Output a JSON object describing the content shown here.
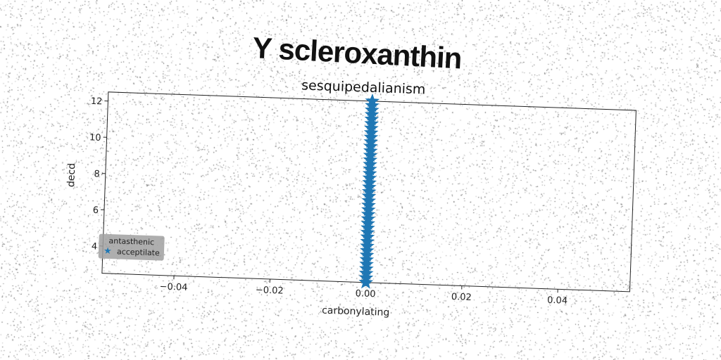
{
  "page": {
    "suptitle": "Y scleroxanthin"
  },
  "colors": {
    "series": "#1f77b4",
    "axis": "#222222",
    "legend_bg": "#a0a0a0"
  },
  "chart_data": {
    "type": "scatter",
    "title": "sesquipedalianism",
    "xlabel": "carbonylating",
    "ylabel": "decd",
    "xlim": [
      -0.055,
      0.055
    ],
    "ylim": [
      2.5,
      12.5
    ],
    "xticks": [
      -0.04,
      -0.02,
      0.0,
      0.02,
      0.04
    ],
    "xtick_labels": [
      "−0.04",
      "−0.02",
      "0.00",
      "0.02",
      "0.04"
    ],
    "yticks": [
      4,
      6,
      8,
      10,
      12
    ],
    "ytick_labels": [
      "4",
      "6",
      "8",
      "10",
      "12"
    ],
    "grid": false,
    "legend": {
      "placement": "lower-left",
      "title": "antasthenic",
      "entries": [
        {
          "label": "acceptilate",
          "marker": "star"
        }
      ]
    },
    "series": [
      {
        "name": "acceptilate",
        "marker": "star",
        "x": [
          0,
          0,
          0,
          0,
          0,
          0,
          0,
          0,
          0,
          0,
          0,
          0,
          0,
          0,
          0,
          0,
          0,
          0,
          0,
          0,
          0,
          0,
          0,
          0,
          0,
          0,
          0,
          0,
          0,
          0,
          0,
          0,
          0,
          0,
          0,
          0,
          0,
          0,
          0,
          0,
          0
        ],
        "y": [
          2.5,
          2.75,
          3.0,
          3.25,
          3.5,
          3.75,
          4.0,
          4.25,
          4.5,
          4.75,
          5.0,
          5.25,
          5.5,
          5.75,
          6.0,
          6.25,
          6.5,
          6.75,
          7.0,
          7.25,
          7.5,
          7.75,
          8.0,
          8.25,
          8.5,
          8.75,
          9.0,
          9.25,
          9.5,
          9.75,
          10.0,
          10.25,
          10.5,
          10.75,
          11.0,
          11.25,
          11.5,
          11.75,
          12.0,
          12.25,
          12.5
        ]
      }
    ]
  }
}
